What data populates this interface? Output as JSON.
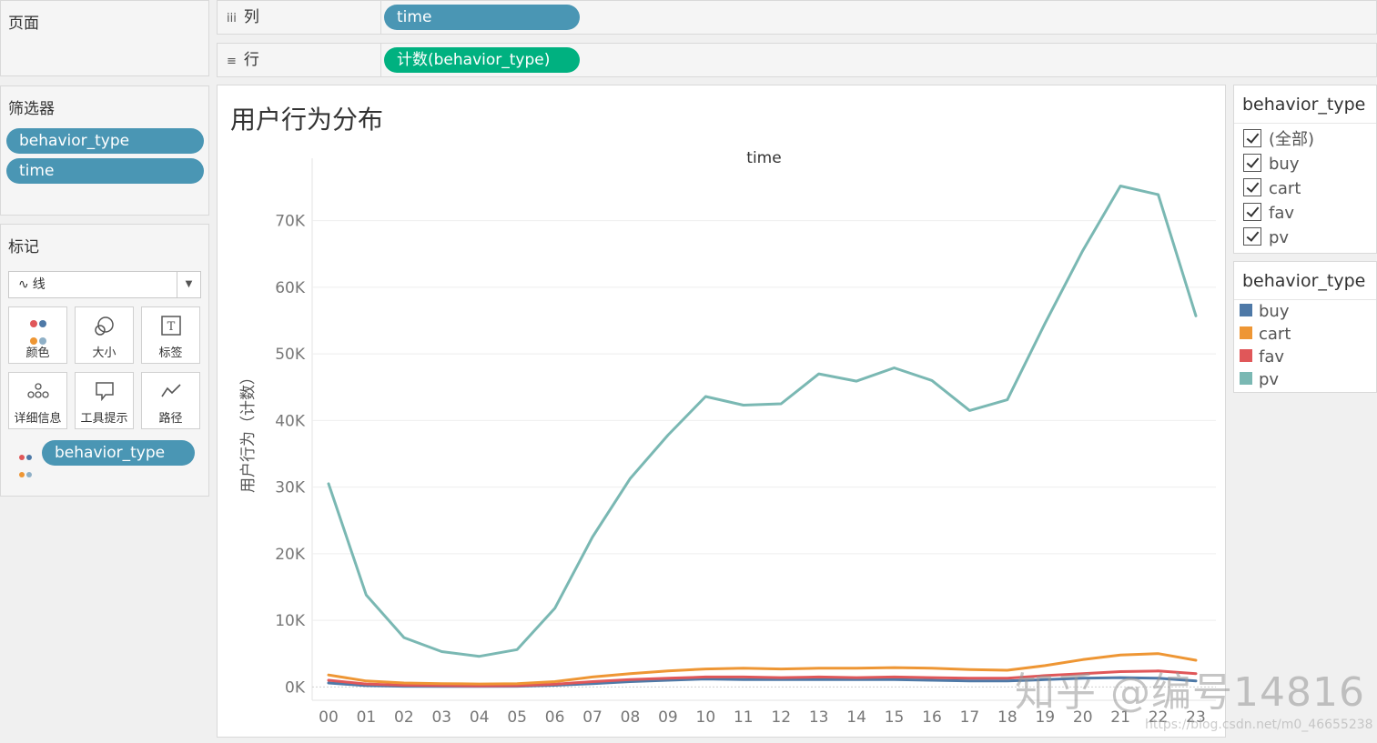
{
  "pages": {
    "title": "页面"
  },
  "shelves": {
    "columns": {
      "icon": "iii",
      "label": "列",
      "pill": "time"
    },
    "rows": {
      "icon": "≡",
      "label": "行",
      "pill": "计数(behavior_type)"
    }
  },
  "filters": {
    "title": "筛选器",
    "items": [
      "behavior_type",
      "time"
    ]
  },
  "marks": {
    "title": "标记",
    "type_icon": "∿",
    "type": "线",
    "buttons": [
      "颜色",
      "大小",
      "标签",
      "详细信息",
      "工具提示",
      "路径"
    ],
    "color_pill": "behavior_type"
  },
  "chart": {
    "title": "用户行为分布"
  },
  "chart_data": {
    "type": "line",
    "title": "用户行为分布",
    "header": "time",
    "xlabel": "",
    "ylabel": "用户行为（计数）",
    "categories": [
      "00",
      "01",
      "02",
      "03",
      "04",
      "05",
      "06",
      "07",
      "08",
      "09",
      "10",
      "11",
      "12",
      "13",
      "14",
      "15",
      "16",
      "17",
      "18",
      "19",
      "20",
      "21",
      "22",
      "23"
    ],
    "ylim": [
      -2000,
      78000
    ],
    "yticks": [
      0,
      10000,
      20000,
      30000,
      40000,
      50000,
      60000,
      70000
    ],
    "ytick_labels": [
      "0K",
      "10K",
      "20K",
      "30K",
      "40K",
      "50K",
      "60K",
      "70K"
    ],
    "series": [
      {
        "name": "pv",
        "color": "#7ab8b3",
        "values": [
          30500,
          13800,
          7400,
          5300,
          4600,
          5600,
          11800,
          22500,
          31300,
          37800,
          43600,
          42300,
          42500,
          47000,
          45900,
          47900,
          46000,
          41500,
          43100,
          54600,
          65500,
          75200,
          73900,
          55700
        ]
      },
      {
        "name": "cart",
        "color": "#ee9634",
        "values": [
          1800,
          900,
          600,
          500,
          450,
          500,
          800,
          1500,
          2000,
          2400,
          2700,
          2800,
          2700,
          2800,
          2800,
          2900,
          2800,
          2600,
          2500,
          3200,
          4100,
          4800,
          5000,
          4000
        ]
      },
      {
        "name": "fav",
        "color": "#e05759",
        "values": [
          1000,
          450,
          250,
          200,
          150,
          180,
          400,
          800,
          1100,
          1300,
          1500,
          1500,
          1400,
          1500,
          1400,
          1500,
          1400,
          1300,
          1300,
          1700,
          2000,
          2300,
          2400,
          2000
        ]
      },
      {
        "name": "buy",
        "color": "#4e79a7",
        "values": [
          600,
          200,
          100,
          80,
          80,
          100,
          250,
          500,
          800,
          1000,
          1200,
          1100,
          1100,
          1100,
          1100,
          1100,
          1000,
          900,
          900,
          1100,
          1300,
          1400,
          1300,
          900
        ]
      }
    ],
    "grid": true,
    "legend": "right"
  },
  "legend_filter": {
    "title": "behavior_type",
    "items": [
      "(全部)",
      "buy",
      "cart",
      "fav",
      "pv"
    ]
  },
  "legend_color": {
    "title": "behavior_type",
    "items": [
      {
        "label": "buy",
        "color": "#4e79a7"
      },
      {
        "label": "cart",
        "color": "#ee9634"
      },
      {
        "label": "fav",
        "color": "#e05759"
      },
      {
        "label": "pv",
        "color": "#7ab8b3"
      }
    ]
  },
  "watermark": {
    "text": "知乎 @编号14816",
    "url": "https://blog.csdn.net/m0_46655238"
  }
}
